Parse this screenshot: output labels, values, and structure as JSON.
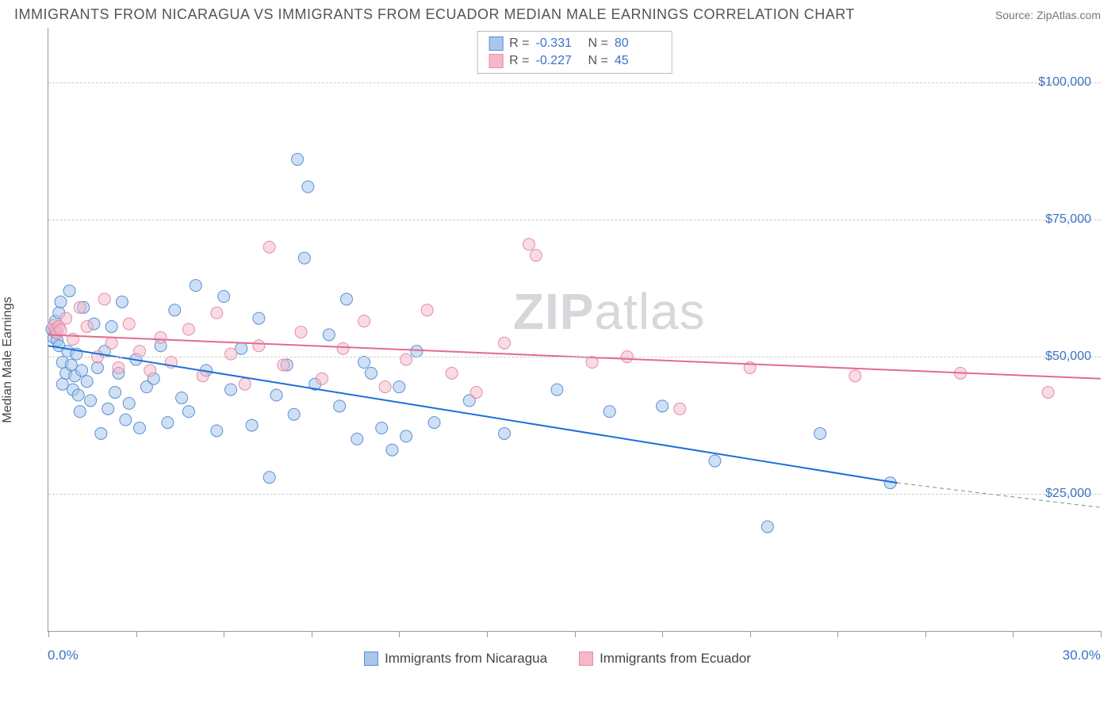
{
  "title": "IMMIGRANTS FROM NICARAGUA VS IMMIGRANTS FROM ECUADOR MEDIAN MALE EARNINGS CORRELATION CHART",
  "source_label": "Source: ",
  "source_name": "ZipAtlas.com",
  "yaxis_label": "Median Male Earnings",
  "xaxis_min_label": "0.0%",
  "xaxis_max_label": "30.0%",
  "watermark_zip": "ZIP",
  "watermark_atlas": "atlas",
  "chart": {
    "type": "scatter",
    "xlim": [
      0,
      30
    ],
    "ylim": [
      0,
      110000
    ],
    "ytick_values": [
      25000,
      50000,
      75000,
      100000
    ],
    "ytick_labels": [
      "$25,000",
      "$50,000",
      "$75,000",
      "$100,000"
    ],
    "xtick_values": [
      0,
      2.5,
      5,
      7.5,
      10,
      12.5,
      15,
      17.5,
      20,
      22.5,
      25,
      27.5,
      30
    ],
    "background_color": "#ffffff",
    "grid_color": "#cccccc",
    "axis_color": "#999999",
    "tick_label_color": "#3b72c4",
    "marker_radius": 7.5,
    "marker_stroke_width": 1,
    "series": [
      {
        "name": "Immigrants from Nicaragua",
        "fill": "#a8c7eb",
        "fill_opacity": 0.55,
        "stroke": "#5a8fd6",
        "trend_color": "#1e6fd9",
        "trend_width": 2,
        "trend": {
          "x1": 0,
          "y1": 52000,
          "x2": 24.2,
          "y2": 27000,
          "dash_extend_x": 30,
          "dash_extend_y": 22500
        },
        "R": "-0.331",
        "N": "80",
        "points": [
          [
            0.1,
            55000
          ],
          [
            0.15,
            53500
          ],
          [
            0.2,
            56500
          ],
          [
            0.2,
            54500
          ],
          [
            0.25,
            53000
          ],
          [
            0.3,
            58000
          ],
          [
            0.3,
            52000
          ],
          [
            0.35,
            60000
          ],
          [
            0.4,
            49000
          ],
          [
            0.4,
            45000
          ],
          [
            0.5,
            47000
          ],
          [
            0.55,
            51000
          ],
          [
            0.6,
            62000
          ],
          [
            0.65,
            48500
          ],
          [
            0.7,
            44000
          ],
          [
            0.75,
            46500
          ],
          [
            0.8,
            50500
          ],
          [
            0.85,
            43000
          ],
          [
            0.9,
            40000
          ],
          [
            0.95,
            47500
          ],
          [
            1.0,
            59000
          ],
          [
            1.1,
            45500
          ],
          [
            1.2,
            42000
          ],
          [
            1.3,
            56000
          ],
          [
            1.4,
            48000
          ],
          [
            1.5,
            36000
          ],
          [
            1.6,
            51000
          ],
          [
            1.7,
            40500
          ],
          [
            1.8,
            55500
          ],
          [
            1.9,
            43500
          ],
          [
            2.0,
            47000
          ],
          [
            2.1,
            60000
          ],
          [
            2.2,
            38500
          ],
          [
            2.3,
            41500
          ],
          [
            2.5,
            49500
          ],
          [
            2.6,
            37000
          ],
          [
            2.8,
            44500
          ],
          [
            3.0,
            46000
          ],
          [
            3.2,
            52000
          ],
          [
            3.4,
            38000
          ],
          [
            3.6,
            58500
          ],
          [
            3.8,
            42500
          ],
          [
            4.0,
            40000
          ],
          [
            4.2,
            63000
          ],
          [
            4.5,
            47500
          ],
          [
            4.8,
            36500
          ],
          [
            5.0,
            61000
          ],
          [
            5.2,
            44000
          ],
          [
            5.5,
            51500
          ],
          [
            5.8,
            37500
          ],
          [
            6.0,
            57000
          ],
          [
            6.3,
            28000
          ],
          [
            6.5,
            43000
          ],
          [
            6.8,
            48500
          ],
          [
            7.0,
            39500
          ],
          [
            7.1,
            86000
          ],
          [
            7.3,
            68000
          ],
          [
            7.4,
            81000
          ],
          [
            7.6,
            45000
          ],
          [
            8.0,
            54000
          ],
          [
            8.3,
            41000
          ],
          [
            8.5,
            60500
          ],
          [
            8.8,
            35000
          ],
          [
            9.0,
            49000
          ],
          [
            9.2,
            47000
          ],
          [
            9.5,
            37000
          ],
          [
            9.8,
            33000
          ],
          [
            10.0,
            44500
          ],
          [
            10.2,
            35500
          ],
          [
            10.5,
            51000
          ],
          [
            11.0,
            38000
          ],
          [
            12.0,
            42000
          ],
          [
            13.0,
            36000
          ],
          [
            14.5,
            44000
          ],
          [
            16.0,
            40000
          ],
          [
            17.5,
            41000
          ],
          [
            19.0,
            31000
          ],
          [
            20.5,
            19000
          ],
          [
            22.0,
            36000
          ],
          [
            24.0,
            27000
          ]
        ]
      },
      {
        "name": "Immigrants from Ecuador",
        "fill": "#f4b8c8",
        "fill_opacity": 0.5,
        "stroke": "#e88aa5",
        "trend_color": "#e06c8e",
        "trend_width": 2,
        "trend": {
          "x1": 0,
          "y1": 54000,
          "x2": 30,
          "y2": 46000
        },
        "R": "-0.227",
        "N": "45",
        "points": [
          [
            0.15,
            55700
          ],
          [
            0.2,
            55000
          ],
          [
            0.25,
            54300
          ],
          [
            0.3,
            55500
          ],
          [
            0.35,
            54800
          ],
          [
            0.5,
            57000
          ],
          [
            0.7,
            53200
          ],
          [
            0.9,
            59000
          ],
          [
            1.1,
            55500
          ],
          [
            1.4,
            50000
          ],
          [
            1.6,
            60500
          ],
          [
            1.8,
            52500
          ],
          [
            2.0,
            48000
          ],
          [
            2.3,
            56000
          ],
          [
            2.6,
            51000
          ],
          [
            2.9,
            47500
          ],
          [
            3.2,
            53500
          ],
          [
            3.5,
            49000
          ],
          [
            4.0,
            55000
          ],
          [
            4.4,
            46500
          ],
          [
            4.8,
            58000
          ],
          [
            5.2,
            50500
          ],
          [
            5.6,
            45000
          ],
          [
            6.0,
            52000
          ],
          [
            6.3,
            70000
          ],
          [
            6.7,
            48500
          ],
          [
            7.2,
            54500
          ],
          [
            7.8,
            46000
          ],
          [
            8.4,
            51500
          ],
          [
            9.0,
            56500
          ],
          [
            9.6,
            44500
          ],
          [
            10.2,
            49500
          ],
          [
            10.8,
            58500
          ],
          [
            11.5,
            47000
          ],
          [
            12.2,
            43500
          ],
          [
            13.0,
            52500
          ],
          [
            13.7,
            70500
          ],
          [
            13.9,
            68500
          ],
          [
            15.5,
            49000
          ],
          [
            16.5,
            50000
          ],
          [
            18.0,
            40500
          ],
          [
            20.0,
            48000
          ],
          [
            23.0,
            46500
          ],
          [
            26.0,
            47000
          ],
          [
            28.5,
            43500
          ]
        ]
      }
    ]
  },
  "legend_R_label": "R =",
  "legend_N_label": "N ="
}
